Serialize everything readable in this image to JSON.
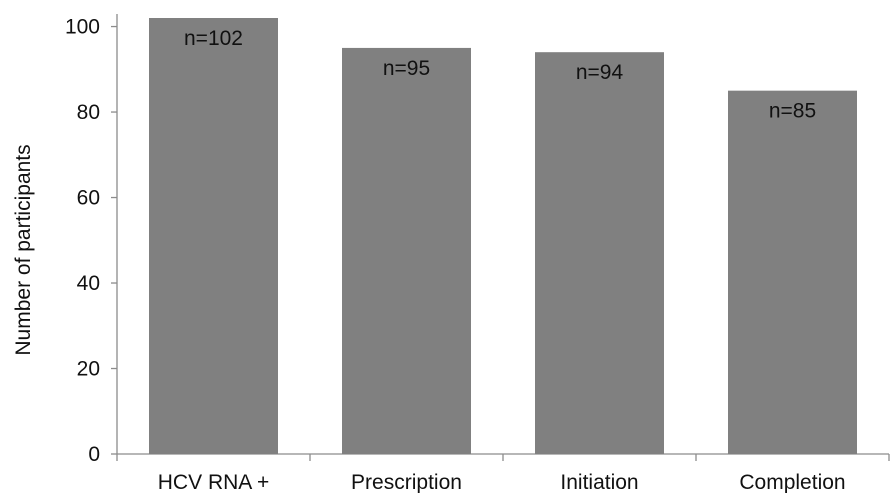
{
  "chart_data": {
    "type": "bar",
    "title": "",
    "xlabel": "",
    "ylabel": "Number of participants",
    "categories": [
      "HCV RNA +",
      "Prescription",
      "Initiation",
      "Completion"
    ],
    "values": [
      102,
      95,
      94,
      85
    ],
    "data_labels": [
      "n=102",
      "n=95",
      "n=94",
      "n=85"
    ],
    "yticks": [
      0,
      20,
      40,
      60,
      80,
      100
    ],
    "ylim": [
      0,
      102
    ],
    "grid": false,
    "legend": "none",
    "bar_color": "#808080"
  }
}
